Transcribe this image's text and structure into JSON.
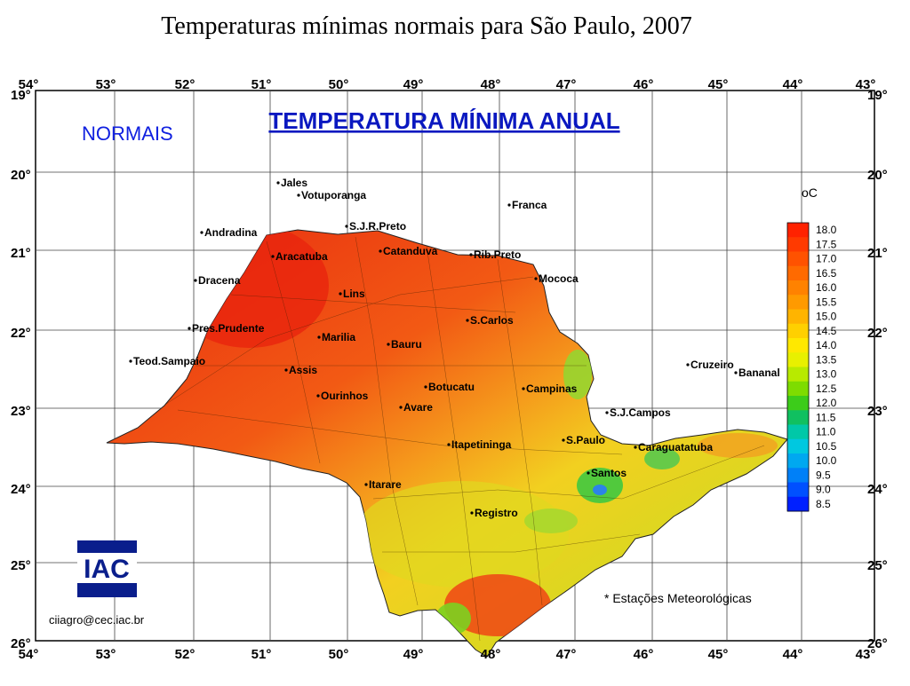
{
  "slide": {
    "title": "Temperaturas mínimas normais para São Paulo, 2007"
  },
  "map": {
    "heading": "TEMPERATURA MÍNIMA ANUAL",
    "subheading": "NORMAIS",
    "unit_label": "oC",
    "longitude_labels": [
      "54°",
      "53°",
      "52°",
      "51°",
      "50°",
      "49°",
      "48°",
      "47°",
      "46°",
      "45°",
      "44°",
      "43°"
    ],
    "latitude_labels": [
      "19°",
      "20°",
      "21°",
      "22°",
      "23°",
      "24°",
      "25°",
      "26°"
    ],
    "legend_values": [
      "18.0",
      "17.5",
      "17.0",
      "16.5",
      "16.0",
      "15.5",
      "15.0",
      "14.5",
      "14.0",
      "13.5",
      "13.0",
      "12.5",
      "12.0",
      "11.5",
      "11.0",
      "10.5",
      "10.0",
      "9.5",
      "9.0",
      "8.5"
    ],
    "legend_colors": [
      "#ff2200",
      "#ff3a00",
      "#ff5200",
      "#ff6a00",
      "#ff8200",
      "#ff9a00",
      "#ffb400",
      "#ffd000",
      "#ffe800",
      "#e8f000",
      "#b8ea00",
      "#7edc00",
      "#3ccc1a",
      "#10c060",
      "#00c8a8",
      "#00c8e0",
      "#00a8f0",
      "#0080f8",
      "#0050ff",
      "#0020ff"
    ],
    "cities": [
      {
        "name": "Jales"
      },
      {
        "name": "Votuporanga"
      },
      {
        "name": "Franca"
      },
      {
        "name": "Andradina"
      },
      {
        "name": "S.J.R.Preto"
      },
      {
        "name": "Catanduva"
      },
      {
        "name": "Rib.Preto"
      },
      {
        "name": "Aracatuba"
      },
      {
        "name": "Dracena"
      },
      {
        "name": "Mococa"
      },
      {
        "name": "Lins"
      },
      {
        "name": "S.Carlos"
      },
      {
        "name": "Pres.Prudente"
      },
      {
        "name": "Marilia"
      },
      {
        "name": "Bauru"
      },
      {
        "name": "Teod.Sampaio"
      },
      {
        "name": "Assis"
      },
      {
        "name": "Cruzeiro"
      },
      {
        "name": "Bananal"
      },
      {
        "name": "Botucatu"
      },
      {
        "name": "Campinas"
      },
      {
        "name": "Ourinhos"
      },
      {
        "name": "Avare"
      },
      {
        "name": "S.J.Campos"
      },
      {
        "name": "Itapetininga"
      },
      {
        "name": "S.Paulo"
      },
      {
        "name": "Caraguatatuba"
      },
      {
        "name": "Santos"
      },
      {
        "name": "Itarare"
      },
      {
        "name": "Registro"
      }
    ],
    "stations_note": "* Estações Meteorológicas",
    "logo_text": "IAC",
    "email": "ciiagro@cec.iac.br"
  }
}
